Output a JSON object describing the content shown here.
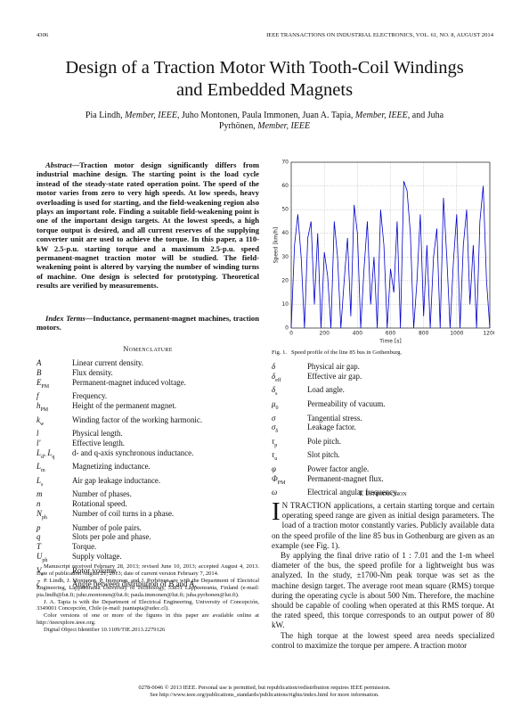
{
  "header": {
    "page_number": "4306",
    "journal": "IEEE TRANSACTIONS ON INDUSTRIAL ELECTRONICS, VOL. 61, NO. 8, AUGUST 2014"
  },
  "title": "Design of a Traction Motor With Tooth-Coil Windings and Embedded Magnets",
  "authors": [
    "Pia Lindh, ",
    "Member, IEEE",
    ", Juho Montonen, Paula Immonen, Juan A. Tapia, ",
    "Member, IEEE",
    ", and Juha Pyrhönen, ",
    "Member, IEEE"
  ],
  "abstract": {
    "label": "Abstract—",
    "text": "Traction motor design significantly differs from industrial machine design. The starting point is the load cycle instead of the steady-state rated operation point. The speed of the motor varies from zero to very high speeds. At low speeds, heavy overloading is used for starting, and the field-weakening region also plays an important role. Finding a suitable field-weakening point is one of the important design targets. At the lowest speeds, a high torque output is desired, and all current reserves of the supplying converter unit are used to achieve the torque. In this paper, a 110-kW 2.5-p.u. starting torque and a maximum 2.5-p.u. speed permanent-magnet traction motor will be studied. The field-weakening point is altered by varying the number of winding turns of machine. One design is selected for prototyping. Theoretical results are verified by measurements."
  },
  "index_terms": {
    "label": "Index Terms—",
    "text": "Inductance, permanent-magnet machines, traction motors."
  },
  "nomenclature": {
    "heading": "Nomenclature",
    "items": [
      {
        "symbol": [
          "A"
        ],
        "description": "Linear current density."
      },
      {
        "symbol": [
          "B"
        ],
        "description": "Flux density."
      },
      {
        "symbol": [
          "E",
          "PM"
        ],
        "description": "Permanent-magnet induced voltage."
      },
      {
        "symbol": [
          "f"
        ],
        "description": "Frequency."
      },
      {
        "symbol": [
          "h",
          "PM"
        ],
        "description": "Height of the permanent magnet."
      },
      {
        "symbol": [
          "k",
          "w"
        ],
        "description": "Winding factor of the working harmonic."
      },
      {
        "symbol": [
          "l"
        ],
        "description": "Physical length."
      },
      {
        "symbol": [
          "l′"
        ],
        "description": "Effective length."
      },
      {
        "symbol": [
          "L",
          "d",
          ", L",
          "q"
        ],
        "description": "d- and q-axis synchronous inductance."
      },
      {
        "symbol": [
          "L",
          "m"
        ],
        "description": "Magnetizing inductance."
      },
      {
        "symbol": [
          "L",
          "s"
        ],
        "description": "Air gap leakage inductance."
      },
      {
        "symbol": [
          "m"
        ],
        "description": "Number of phases."
      },
      {
        "symbol": [
          "n"
        ],
        "description": "Rotational speed."
      },
      {
        "symbol": [
          "N",
          "ph"
        ],
        "description": "Number of coil turns in a phase."
      },
      {
        "symbol": [
          "p"
        ],
        "description": "Number of pole pairs."
      },
      {
        "symbol": [
          "q"
        ],
        "description": "Slots per pole and phase."
      },
      {
        "symbol": [
          "T"
        ],
        "description": "Torque."
      },
      {
        "symbol": [
          "U",
          "ph"
        ],
        "description": "Supply voltage."
      },
      {
        "symbol": [
          "V",
          "r"
        ],
        "description": "Rotor volume."
      },
      {
        "symbol": [
          "ζ"
        ],
        "description": "Angle between distribution of B and A."
      }
    ],
    "items_continued": [
      {
        "symbol": [
          "δ"
        ],
        "description": "Physical air gap."
      },
      {
        "symbol": [
          "δ",
          "eff"
        ],
        "description": "Effective air gap."
      },
      {
        "symbol": [
          "δ",
          "s"
        ],
        "description": "Load angle."
      },
      {
        "symbol": [
          "μ",
          "0"
        ],
        "description": "Permeability of vacuum."
      },
      {
        "symbol": [
          "σ"
        ],
        "description": "Tangential stress."
      },
      {
        "symbol": [
          "σ",
          "δ"
        ],
        "description": "Leakage factor."
      },
      {
        "symbol": [
          "τ",
          "p"
        ],
        "description": "Pole pitch."
      },
      {
        "symbol": [
          "τ",
          "u"
        ],
        "description": "Slot pitch."
      },
      {
        "symbol": [
          "φ"
        ],
        "description": "Power factor angle."
      },
      {
        "symbol": [
          "Φ",
          "PM"
        ],
        "description": "Permanent-magnet flux."
      },
      {
        "symbol": [
          "ω"
        ],
        "description": "Electrical angular frequency."
      }
    ]
  },
  "footnotes": [
    "Manuscript received February 28, 2013; revised June 10, 2013; accepted August 4, 2013. Date of publication August 21, 2013; date of current version February 7, 2014.",
    "P. Lindh, J. Montonen, P. Immonen, and J. Pyrhönen are with the Department of Electrical Engineering, Lappeenranta University of Technology, 53851 Lappeenranta, Finland (e-mail: pia.lindh@lut.fi; juho.montonen@lut.fi; paula.immonen@lut.fi; juha.pyrhonen@lut.fi).",
    "J. A. Tapia is with the Department of Electrical Engineering, University of Concepción, 3349001 Concepción, Chile (e-mail: juantapia@udec.cl).",
    "Color versions of one or more of the figures in this paper are available online at http://ieeexplore.ieee.org.",
    "Digital Object Identifier 10.1109/TIE.2013.2279126"
  ],
  "figure": {
    "label": "Fig. 1.",
    "caption": "Speed profile of the line 85 bus in Gothenburg.",
    "chart_data": {
      "type": "line",
      "x_label": "Time [s]",
      "y_label": "Speed [km/h]",
      "x": [
        0,
        20,
        40,
        60,
        80,
        100,
        120,
        140,
        160,
        180,
        200,
        220,
        240,
        260,
        280,
        300,
        320,
        340,
        360,
        380,
        400,
        420,
        440,
        460,
        480,
        500,
        520,
        540,
        560,
        580,
        600,
        620,
        640,
        660,
        680,
        700,
        720,
        740,
        760,
        780,
        800,
        820,
        840,
        860,
        880,
        900,
        920,
        940,
        960,
        980,
        1000,
        1020,
        1040,
        1060,
        1080,
        1100,
        1120,
        1140,
        1160,
        1180,
        1200
      ],
      "series": [
        {
          "color": "#0000cc",
          "values": [
            0,
            35,
            48,
            30,
            0,
            38,
            45,
            10,
            40,
            0,
            32,
            22,
            0,
            45,
            30,
            0,
            20,
            38,
            5,
            52,
            40,
            0,
            25,
            45,
            10,
            30,
            0,
            50,
            35,
            0,
            25,
            15,
            45,
            0,
            62,
            58,
            40,
            0,
            20,
            48,
            5,
            35,
            0,
            30,
            42,
            0,
            55,
            30,
            0,
            28,
            48,
            0,
            35,
            50,
            10,
            35,
            0,
            45,
            60,
            20,
            0
          ]
        }
      ],
      "xlim": [
        0,
        1200
      ],
      "ylim": [
        0,
        70
      ],
      "xticks": [
        0,
        200,
        400,
        600,
        800,
        1000,
        1200
      ],
      "yticks": [
        0,
        10,
        20,
        30,
        40,
        50,
        60,
        70
      ],
      "grid": true
    }
  },
  "introduction": {
    "number": "I.",
    "heading": "Introduction",
    "drop_cap": "I",
    "paragraphs": [
      "N TRACTION applications, a certain starting torque and certain operating speed range are given as initial design parameters. The load of a traction motor constantly varies. Publicly available data on the speed profile of the line 85 bus in Gothenburg are given as an example (see Fig. 1).",
      "By applying the final drive ratio of 1 : 7.01 and the 1-m wheel diameter of the bus, the speed profile for a lightweight bus was analyzed. In the study, ±1700-Nm peak torque was set as the machine design target. The average root mean square (RMS) torque during the operating cycle is about 500 Nm. Therefore, the machine should be capable of cooling when operated at this RMS torque. At the rated speed, this torque corresponds to an output power of 80 kW.",
      "The high torque at the lowest speed area needs specialized control to maximize the torque per ampere. A traction motor"
    ]
  },
  "copyright": [
    "0278-0046 © 2013 IEEE. Personal use is permitted, but republication/redistribution requires IEEE permission.",
    "See http://www.ieee.org/publications_standards/publications/rights/index.html for more information."
  ]
}
